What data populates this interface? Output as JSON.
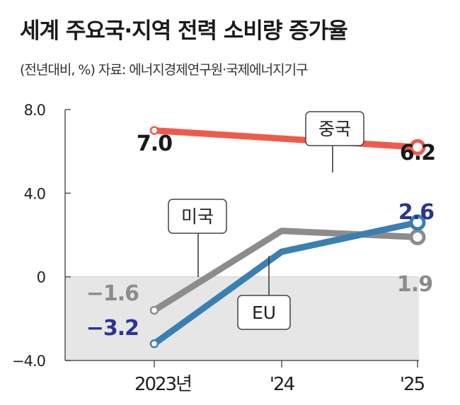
{
  "chart_data": {
    "type": "line",
    "title": "세계 주요국·지역 전력 소비량 증가율",
    "subtitle": "(전년대비, %) 자료: 에너지경제연구원·국제에너지기구",
    "categories": [
      "2023년",
      "'24",
      "'25"
    ],
    "yticks": [
      "8.0",
      "4.0",
      "0",
      "−4.0"
    ],
    "ylim": [
      -4,
      8
    ],
    "grid": false,
    "negative_region_shaded": true,
    "series": [
      {
        "name": "중국",
        "values": [
          7.0,
          null,
          6.2
        ],
        "start_label": "7.0",
        "end_label": "6.2",
        "color": "#ef5a4c",
        "label_color": "#1a1a1a"
      },
      {
        "name": "미국",
        "values": [
          -1.6,
          2.2,
          1.9
        ],
        "start_label": "−1.6",
        "end_label": "1.9",
        "color": "#8c8c8c",
        "label_color": "#8c8c8c"
      },
      {
        "name": "EU",
        "values": [
          -3.2,
          1.2,
          2.6
        ],
        "start_label": "−3.2",
        "end_label": "2.6",
        "color": "#3a7fb2",
        "label_color": "#2a3590"
      }
    ]
  }
}
